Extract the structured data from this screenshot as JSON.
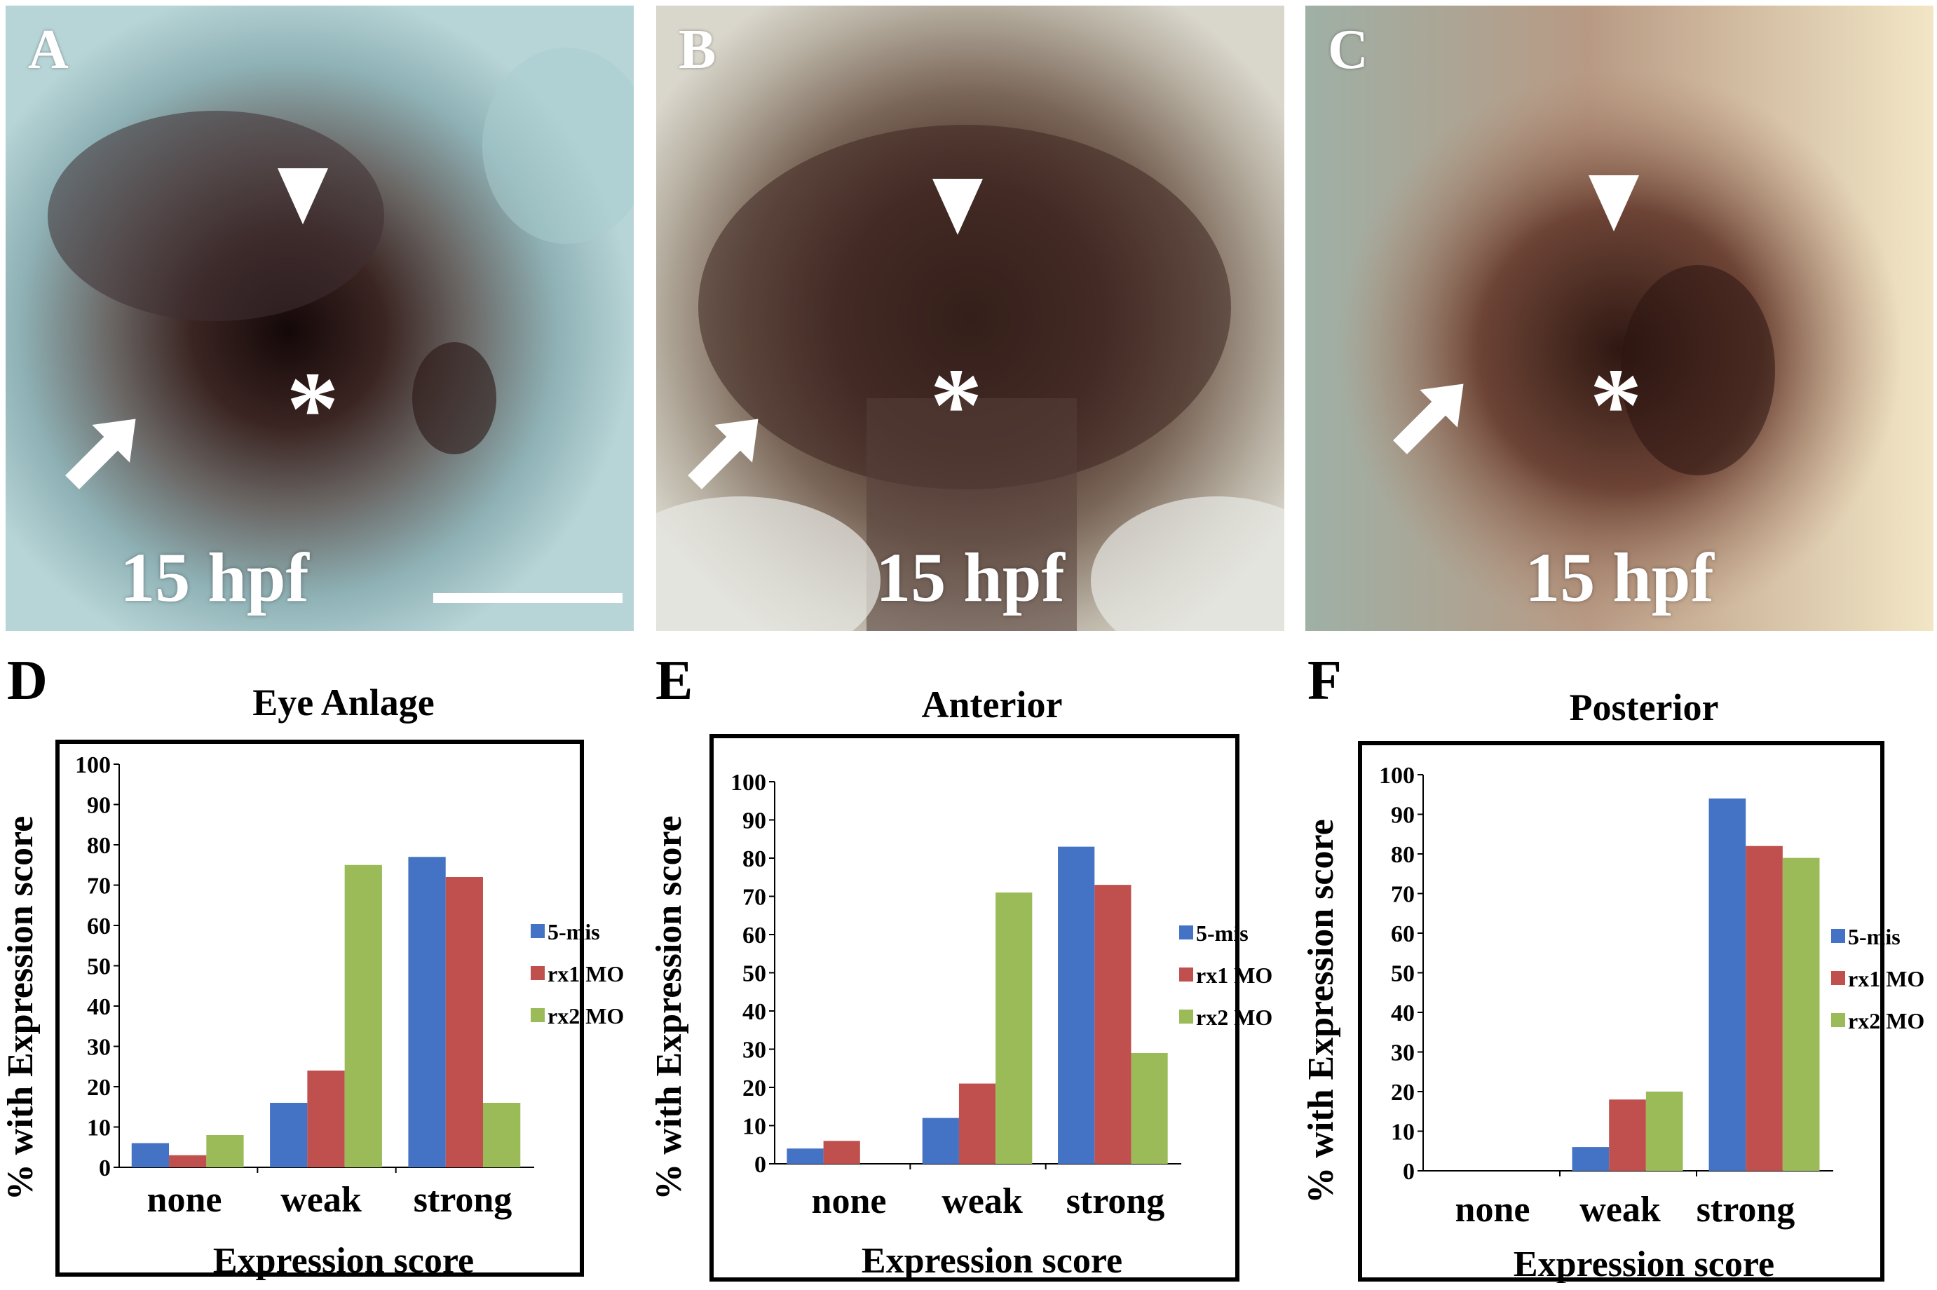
{
  "photos": [
    {
      "letter": "A",
      "stage": "15 hpf",
      "has_scale_bar": true
    },
    {
      "letter": "B",
      "stage": "15 hpf",
      "has_scale_bar": false
    },
    {
      "letter": "C",
      "stage": "15 hpf",
      "has_scale_bar": false
    }
  ],
  "photo_marks": {
    "asterisk": "*",
    "arrowhead": "arrowhead",
    "arrow": "arrow"
  },
  "colors": {
    "series_5mis": "#4472c4",
    "series_rx1": "#c0504d",
    "series_rx2": "#9bbb59"
  },
  "chart_data": [
    {
      "letter": "D",
      "type": "bar",
      "title": "Eye Anlage",
      "xlabel": "Expression score",
      "ylabel": "% with Expression score",
      "categories": [
        "none",
        "weak",
        "strong"
      ],
      "ylim": [
        0,
        100
      ],
      "yticks": [
        0,
        10,
        20,
        30,
        40,
        50,
        60,
        70,
        80,
        90,
        100
      ],
      "legend_position": "right",
      "series": [
        {
          "name": "5-mis",
          "values": [
            6,
            16,
            77
          ]
        },
        {
          "name": "rx1 MO",
          "values": [
            3,
            24,
            72
          ]
        },
        {
          "name": "rx2 MO",
          "values": [
            8,
            75,
            16
          ]
        }
      ]
    },
    {
      "letter": "E",
      "type": "bar",
      "title": "Anterior",
      "xlabel": "Expression score",
      "ylabel": "% with Expression score",
      "categories": [
        "none",
        "weak",
        "strong"
      ],
      "ylim": [
        0,
        100
      ],
      "yticks": [
        0,
        10,
        20,
        30,
        40,
        50,
        60,
        70,
        80,
        90,
        100
      ],
      "legend_position": "right",
      "series": [
        {
          "name": "5-mis",
          "values": [
            4,
            12,
            83
          ]
        },
        {
          "name": "rx1 MO",
          "values": [
            6,
            21,
            73
          ]
        },
        {
          "name": "rx2 MO",
          "values": [
            0,
            71,
            29
          ]
        }
      ]
    },
    {
      "letter": "F",
      "type": "bar",
      "title": "Posterior",
      "xlabel": "Expression score",
      "ylabel": "% with Expression score",
      "categories": [
        "none",
        "weak",
        "strong"
      ],
      "ylim": [
        0,
        100
      ],
      "yticks": [
        0,
        10,
        20,
        30,
        40,
        50,
        60,
        70,
        80,
        90,
        100
      ],
      "legend_position": "right",
      "series": [
        {
          "name": "5-mis",
          "values": [
            0,
            6,
            94
          ]
        },
        {
          "name": "rx1 MO",
          "values": [
            0,
            18,
            82
          ]
        },
        {
          "name": "rx2 MO",
          "values": [
            0,
            20,
            79
          ]
        }
      ]
    }
  ]
}
